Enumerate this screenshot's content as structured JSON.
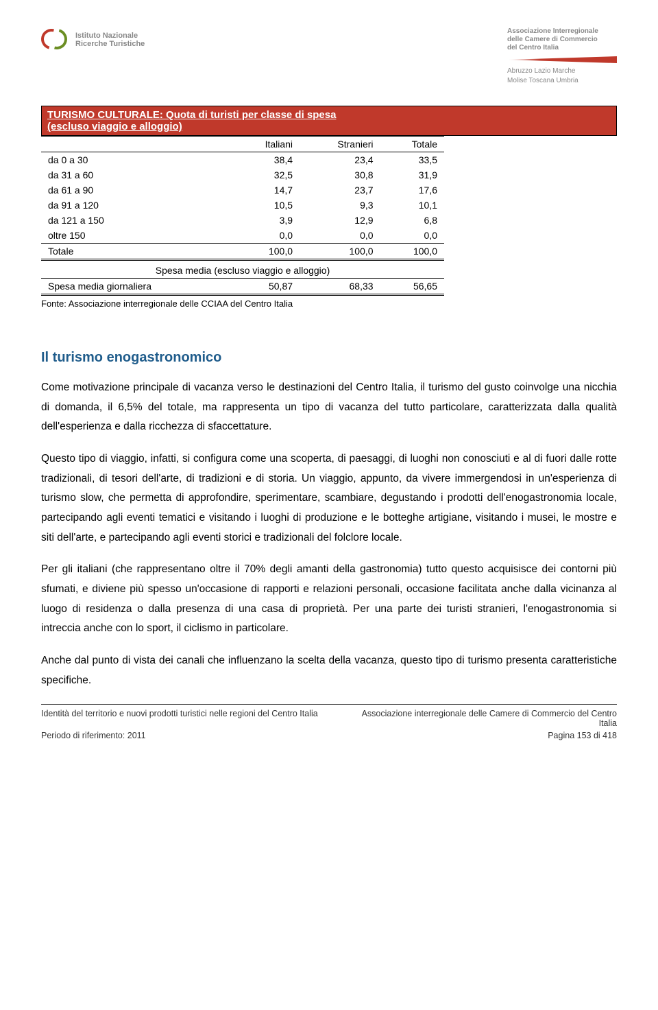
{
  "header": {
    "isnart_line1": "Istituto Nazionale",
    "isnart_line2": "Ricerche Turistiche",
    "assoc_line1": "Associazione Interregionale",
    "assoc_line2": "delle Camere di Commercio",
    "assoc_line3": "del Centro Italia",
    "regions_line1": "Abruzzo Lazio Marche",
    "regions_line2": "Molise Toscana Umbria"
  },
  "table": {
    "title_line1": "TURISMO CULTURALE: Quota di turisti per classe di spesa",
    "title_line2": "(escluso viaggio e alloggio)",
    "columns": [
      "",
      "Italiani",
      "Stranieri",
      "Totale"
    ],
    "rows": [
      [
        "da 0 a 30",
        "38,4",
        "23,4",
        "33,5"
      ],
      [
        "da 31 a 60",
        "32,5",
        "30,8",
        "31,9"
      ],
      [
        "da 61 a 90",
        "14,7",
        "23,7",
        "17,6"
      ],
      [
        "da 91 a 120",
        "10,5",
        "9,3",
        "10,1"
      ],
      [
        "da 121 a 150",
        "3,9",
        "12,9",
        "6,8"
      ],
      [
        "oltre 150",
        "0,0",
        "0,0",
        "0,0"
      ]
    ],
    "totale_row": [
      "Totale",
      "100,0",
      "100,0",
      "100,0"
    ],
    "sub_header": "Spesa media (escluso viaggio e alloggio)",
    "spesa_row": [
      "Spesa media giornaliera",
      "50,87",
      "68,33",
      "56,65"
    ],
    "fonte": "Fonte: Associazione interregionale delle CCIAA del Centro Italia",
    "colors": {
      "header_bg": "#c0392b",
      "header_text": "#ffffff",
      "border": "#000000"
    }
  },
  "section": {
    "heading": "Il turismo enogastronomico",
    "p1": "Come motivazione principale di vacanza verso le destinazioni del Centro Italia, il turismo del gusto coinvolge una nicchia di domanda, il 6,5% del totale, ma rappresenta un tipo di vacanza del tutto particolare, caratterizzata dalla qualità dell'esperienza e dalla ricchezza di sfaccettature.",
    "p2": "Questo tipo di viaggio, infatti, si configura come una scoperta, di paesaggi, di luoghi non conosciuti e al di fuori dalle rotte tradizionali, di tesori dell'arte, di tradizioni e di storia. Un viaggio, appunto, da vivere immergendosi in un'esperienza di turismo slow, che permetta di approfondire, sperimentare, scambiare, degustando i prodotti dell'enogastronomia locale, partecipando agli eventi tematici e visitando i luoghi di produzione e le botteghe artigiane, visitando i musei, le mostre e siti dell'arte, e partecipando agli eventi storici e tradizionali del folclore locale.",
    "p3": "Per gli italiani (che rappresentano oltre il 70% degli amanti della gastronomia) tutto questo acquisisce dei contorni più sfumati, e diviene più spesso un'occasione di rapporti e relazioni personali, occasione facilitata anche dalla vicinanza al luogo di residenza o dalla presenza di una casa di proprietà. Per una parte dei turisti stranieri, l'enogastronomia si intreccia anche con lo sport, il ciclismo in particolare.",
    "p4": "Anche dal punto di vista dei canali che influenzano la scelta della vacanza, questo tipo di turismo presenta caratteristiche specifiche."
  },
  "footer": {
    "left1": "Identità del territorio e nuovi prodotti turistici nelle regioni del Centro Italia",
    "right1": "Associazione interregionale delle Camere di Commercio del Centro Italia",
    "left2": "Periodo di riferimento: 2011",
    "right2": "Pagina 153 di 418"
  }
}
